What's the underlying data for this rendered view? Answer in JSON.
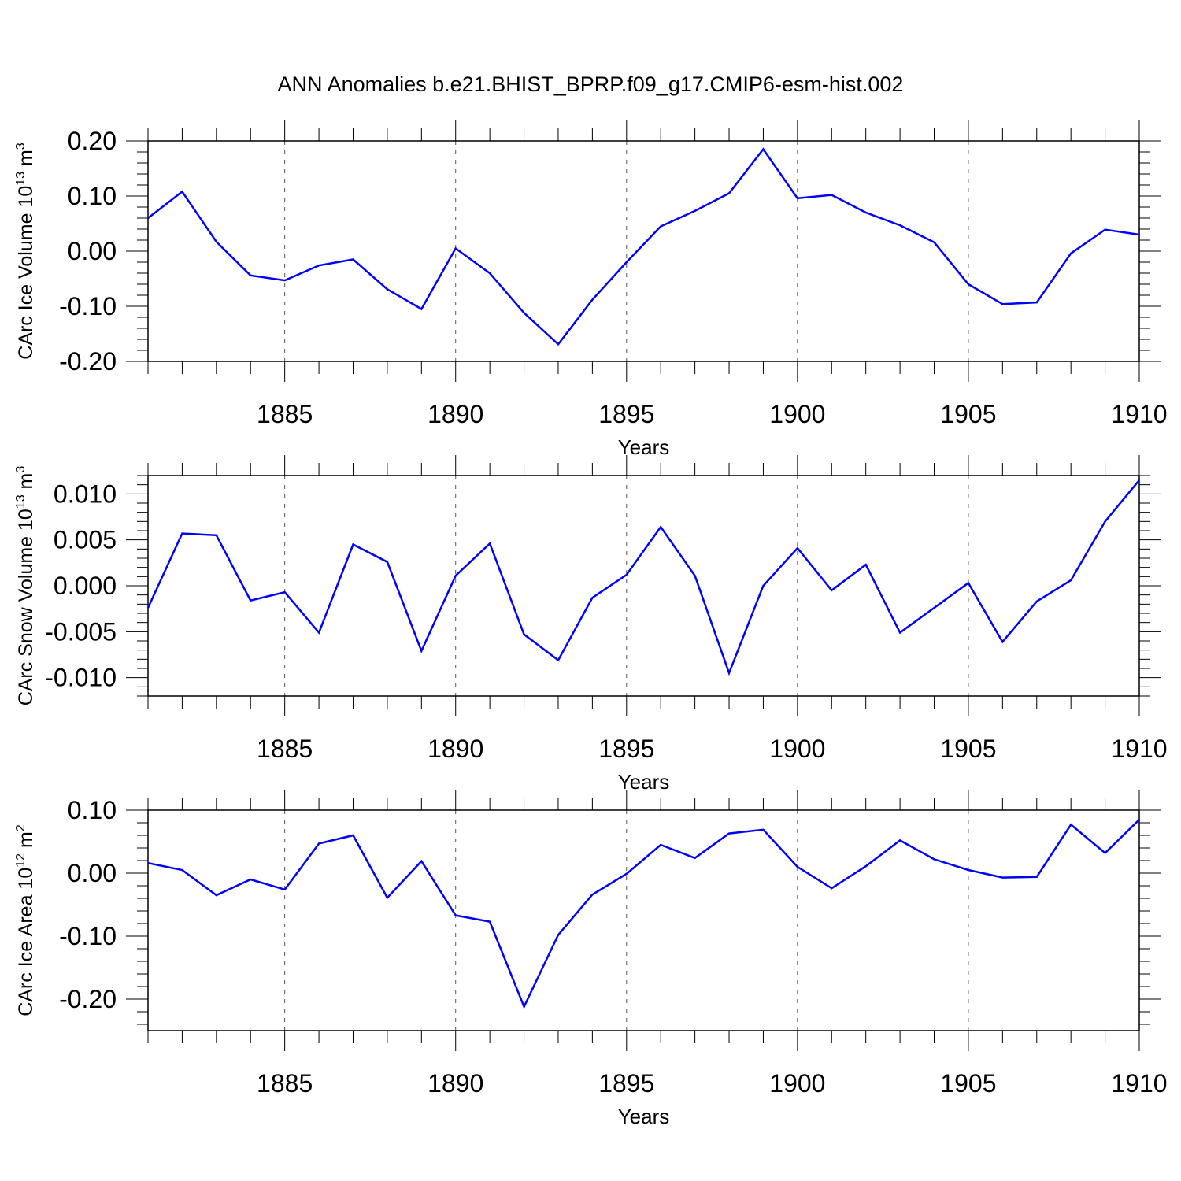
{
  "title": "ANN Anomalies b.e21.BHIST_BPRP.f09_g17.CMIP6-esm-hist.002",
  "chart_data": [
    {
      "type": "line",
      "ylabel": {
        "text": "CArc Ice Volume 10",
        "sup1": "13",
        "mid": " m",
        "sup2": "3"
      },
      "xlabel": "Years",
      "xlim": [
        1881,
        1910
      ],
      "ylim": [
        -0.2,
        0.2
      ],
      "yticks": [
        -0.2,
        -0.1,
        0.0,
        0.1,
        0.2
      ],
      "yticklabels": [
        "-0.20",
        "-0.10",
        "0.00",
        "0.10",
        "0.20"
      ],
      "xticks": [
        1885,
        1890,
        1895,
        1900,
        1905,
        1910
      ],
      "xticklabels": [
        "1885",
        "1890",
        "1895",
        "1900",
        "1905",
        "1910"
      ],
      "grid_x_dashed": [
        1885,
        1890,
        1895,
        1900,
        1905
      ],
      "line_color": "#0000ff",
      "x": [
        1881,
        1882,
        1883,
        1884,
        1885,
        1886,
        1887,
        1888,
        1889,
        1890,
        1891,
        1892,
        1893,
        1894,
        1895,
        1896,
        1897,
        1898,
        1899,
        1900,
        1901,
        1902,
        1903,
        1904,
        1905,
        1906,
        1907,
        1908,
        1909,
        1910
      ],
      "y": [
        0.06,
        0.108,
        0.017,
        -0.044,
        -0.053,
        -0.026,
        -0.015,
        -0.069,
        -0.105,
        0.005,
        -0.04,
        -0.112,
        -0.169,
        -0.088,
        -0.02,
        0.045,
        0.073,
        0.105,
        0.185,
        0.096,
        0.102,
        0.07,
        0.047,
        0.016,
        -0.06,
        -0.096,
        -0.093,
        -0.004,
        0.039,
        0.03
      ]
    },
    {
      "type": "line",
      "ylabel": {
        "text": "CArc Snow Volume 10",
        "sup1": "13",
        "mid": " m",
        "sup2": "3"
      },
      "xlabel": "Years",
      "xlim": [
        1881,
        1910
      ],
      "ylim": [
        -0.012,
        0.012
      ],
      "yticks": [
        -0.01,
        -0.005,
        0.0,
        0.005,
        0.01
      ],
      "yticklabels": [
        "-0.010",
        "-0.005",
        "0.000",
        "0.005",
        "0.010"
      ],
      "xticks": [
        1885,
        1890,
        1895,
        1900,
        1905,
        1910
      ],
      "xticklabels": [
        "1885",
        "1890",
        "1895",
        "1900",
        "1905",
        "1910"
      ],
      "grid_x_dashed": [
        1885,
        1890,
        1895,
        1900,
        1905
      ],
      "line_color": "#0000ff",
      "x": [
        1881,
        1882,
        1883,
        1884,
        1885,
        1886,
        1887,
        1888,
        1889,
        1890,
        1891,
        1892,
        1893,
        1894,
        1895,
        1896,
        1897,
        1898,
        1899,
        1900,
        1901,
        1902,
        1903,
        1904,
        1905,
        1906,
        1907,
        1908,
        1909,
        1910
      ],
      "y": [
        -0.0024,
        0.0057,
        0.0055,
        -0.0016,
        -0.0007,
        -0.0051,
        0.0045,
        0.0026,
        -0.0071,
        0.0011,
        0.0046,
        -0.0053,
        -0.0081,
        -0.0013,
        0.0012,
        0.0064,
        0.0011,
        -0.0095,
        0.0,
        0.0041,
        -0.0005,
        0.0023,
        -0.0051,
        -0.0024,
        0.0003,
        -0.0061,
        -0.0017,
        0.0006,
        0.007,
        0.0115
      ]
    },
    {
      "type": "line",
      "ylabel": {
        "text": "CArc Ice Area 10",
        "sup1": "12",
        "mid": " m",
        "sup2": "2"
      },
      "xlabel": "Years",
      "xlim": [
        1881,
        1910
      ],
      "ylim": [
        -0.25,
        0.1
      ],
      "yticks": [
        -0.2,
        -0.1,
        0.0,
        0.1
      ],
      "yticklabels": [
        "-0.20",
        "-0.10",
        "0.00",
        "0.10"
      ],
      "xticks": [
        1885,
        1890,
        1895,
        1900,
        1905,
        1910
      ],
      "xticklabels": [
        "1885",
        "1890",
        "1895",
        "1900",
        "1905",
        "1910"
      ],
      "grid_x_dashed": [
        1885,
        1890,
        1895,
        1900,
        1905
      ],
      "line_color": "#0000ff",
      "x": [
        1881,
        1882,
        1883,
        1884,
        1885,
        1886,
        1887,
        1888,
        1889,
        1890,
        1891,
        1892,
        1893,
        1894,
        1895,
        1896,
        1897,
        1898,
        1899,
        1900,
        1901,
        1902,
        1903,
        1904,
        1905,
        1906,
        1907,
        1908,
        1909,
        1910
      ],
      "y": [
        0.016,
        0.005,
        -0.035,
        -0.01,
        -0.026,
        0.047,
        0.06,
        -0.039,
        0.019,
        -0.067,
        -0.077,
        -0.212,
        -0.098,
        -0.034,
        -0.001,
        0.045,
        0.024,
        0.063,
        0.069,
        0.01,
        -0.024,
        0.011,
        0.052,
        0.022,
        0.005,
        -0.007,
        -0.006,
        0.077,
        0.032,
        0.085
      ]
    }
  ]
}
